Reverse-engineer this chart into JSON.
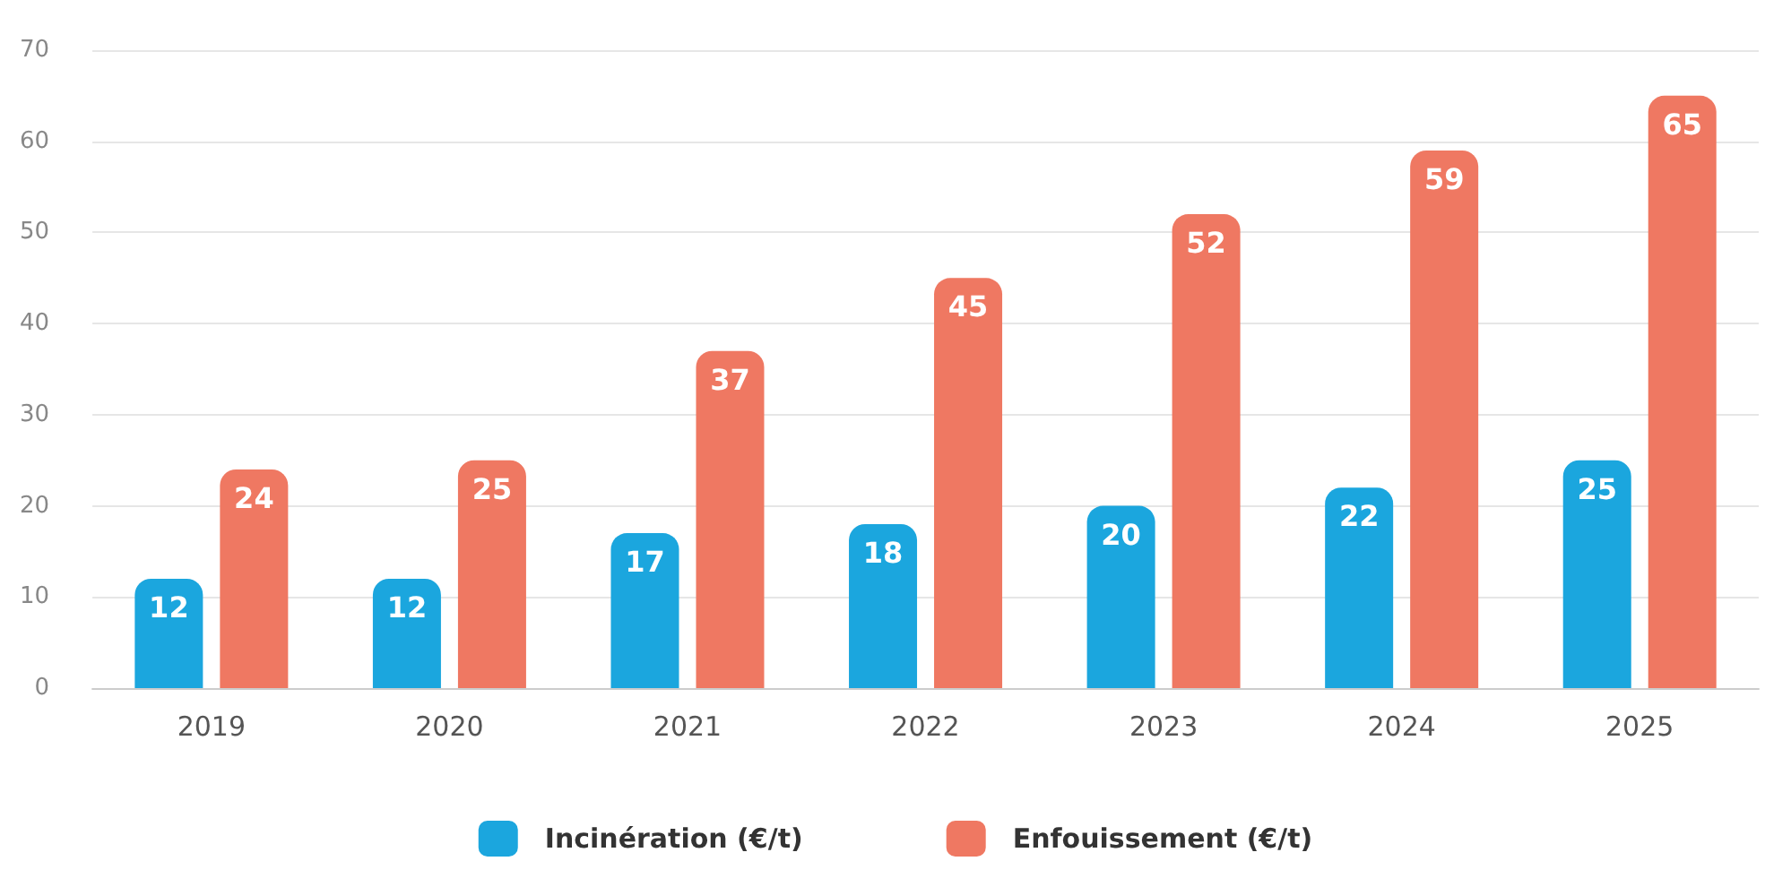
{
  "chart_data": {
    "type": "bar",
    "categories": [
      "2019",
      "2020",
      "2021",
      "2022",
      "2023",
      "2024",
      "2025"
    ],
    "series": [
      {
        "name": "Incinération (€/t)",
        "color": "#1ba6de",
        "values": [
          12,
          12,
          17,
          18,
          20,
          22,
          25
        ]
      },
      {
        "name": "Enfouissement (€/t)",
        "color": "#ef7862",
        "values": [
          24,
          25,
          37,
          45,
          52,
          59,
          65
        ]
      }
    ],
    "ylim": [
      0,
      70
    ],
    "yticks": [
      0,
      10,
      20,
      30,
      40,
      50,
      60,
      70
    ],
    "grid": "y",
    "legend": "bottom",
    "data_labels": true
  }
}
